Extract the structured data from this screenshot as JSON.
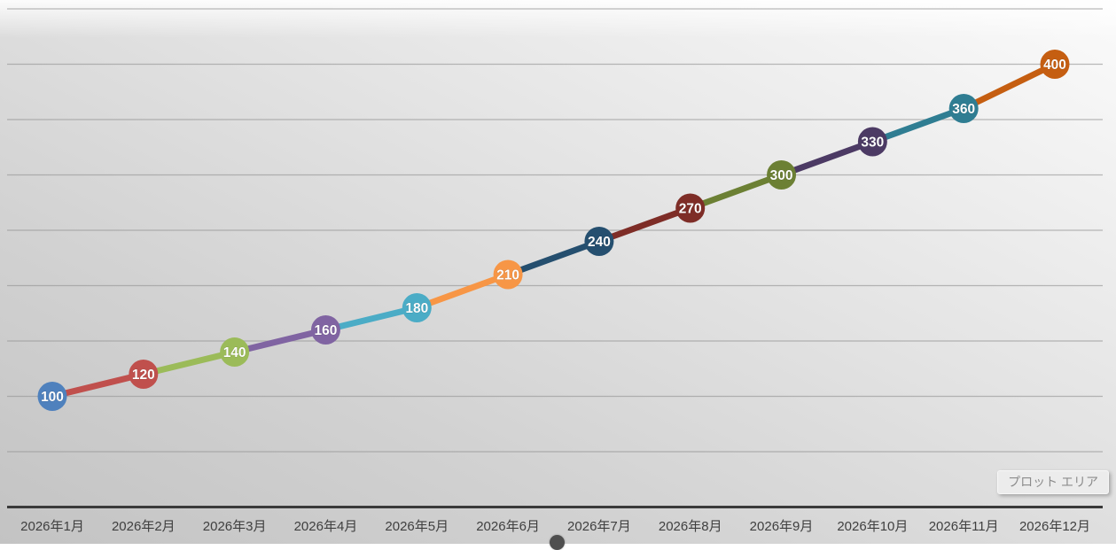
{
  "tooltip": {
    "text": "プロット エリア"
  },
  "chart_data": {
    "type": "line",
    "title": "",
    "xlabel": "",
    "ylabel": "",
    "categories": [
      "2026年1月",
      "2026年2月",
      "2026年3月",
      "2026年4月",
      "2026年5月",
      "2026年6月",
      "2026年7月",
      "2026年8月",
      "2026年9月",
      "2026年10月",
      "2026年11月",
      "2026年12月"
    ],
    "series": [
      {
        "name": "",
        "values": [
          100,
          120,
          140,
          160,
          180,
          210,
          240,
          270,
          300,
          330,
          360,
          400
        ],
        "point_colors": [
          "#4F81BD",
          "#C0504D",
          "#9BBB59",
          "#8064A2",
          "#4BACC6",
          "#F79646",
          "#254F6F",
          "#7E2D27",
          "#6C8034",
          "#4C3A64",
          "#2F7D92",
          "#C55E11"
        ]
      }
    ],
    "data_labels_visible": true,
    "data_label_color": "#FFFFFF",
    "y_axis_labels_visible": false,
    "ylim": [
      0,
      450
    ],
    "gridline_step": 50,
    "grid": true,
    "legend": "none",
    "segment_coloring": "varied-by-point"
  },
  "style": {
    "axis_color": "#3a3a3a",
    "gridline_color": "#969696",
    "tick_label_color": "#3f3f3f"
  }
}
